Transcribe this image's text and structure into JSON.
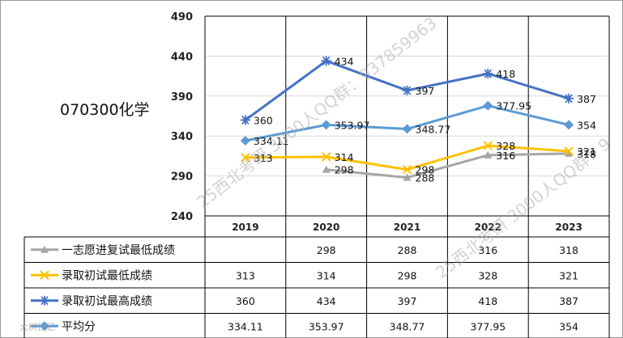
{
  "subject_code": "070300化学",
  "chart_data": {
    "type": "line",
    "categories": [
      "2019",
      "2020",
      "2021",
      "2022",
      "2023"
    ],
    "ylim": [
      240,
      490
    ],
    "yticks": [
      240,
      290,
      340,
      390,
      440,
      490
    ],
    "grid": true,
    "legend": "data-table",
    "series": [
      {
        "name": "一志愿进复试最低成绩",
        "color": "#a6a6a6",
        "marker": "triangle",
        "values": [
          null,
          298,
          288,
          316,
          318
        ],
        "table": [
          "",
          "298",
          "288",
          "316",
          "318"
        ]
      },
      {
        "name": "录取初试最低成绩",
        "color": "#ffc000",
        "marker": "x",
        "values": [
          313,
          314,
          298,
          328,
          321
        ],
        "table": [
          "313",
          "314",
          "298",
          "328",
          "321"
        ]
      },
      {
        "name": "录取初试最高成绩",
        "color": "#4472c4",
        "marker": "star",
        "values": [
          360,
          434,
          397,
          418,
          387
        ],
        "table": [
          "360",
          "434",
          "397",
          "418",
          "387"
        ]
      },
      {
        "name": "平均分",
        "color": "#5b9bd5",
        "marker": "diamond",
        "values": [
          334.11,
          353.97,
          348.77,
          377.95,
          354
        ],
        "table": [
          "334.11",
          "353.97",
          "348.77",
          "377.95",
          "354"
        ]
      }
    ]
  },
  "watermark": {
    "text1": "25西北考研 3000人QQ群：937859963",
    "text2": "25西北考研 3000人QQ群：9",
    "corner": "大树日记"
  }
}
